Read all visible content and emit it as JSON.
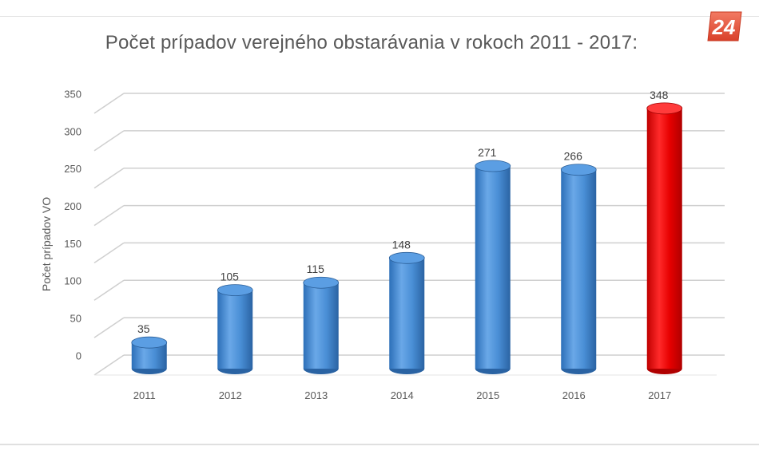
{
  "chart_data": {
    "type": "bar",
    "title": "Počet prípadov verejného obstarávania v rokoch 2011 - 2017:",
    "xlabel": "",
    "ylabel": "Počet prípadov VO",
    "categories": [
      "2011",
      "2012",
      "2013",
      "2014",
      "2015",
      "2016",
      "2017"
    ],
    "values": [
      35,
      105,
      115,
      148,
      271,
      266,
      348
    ],
    "data_labels": [
      "35",
      "105",
      "115",
      "148",
      "271",
      "266",
      "348"
    ],
    "ylim": [
      0,
      350
    ],
    "yticks": [
      "0",
      "50",
      "100",
      "150",
      "200",
      "250",
      "300",
      "350"
    ],
    "grid": true,
    "bar_style": "3d-cylinder",
    "colors": {
      "default": "#4a8fd6",
      "highlight": "#e60000",
      "highlight_index": 6
    }
  },
  "logo": {
    "text": "24",
    "color": "#e8503a"
  }
}
